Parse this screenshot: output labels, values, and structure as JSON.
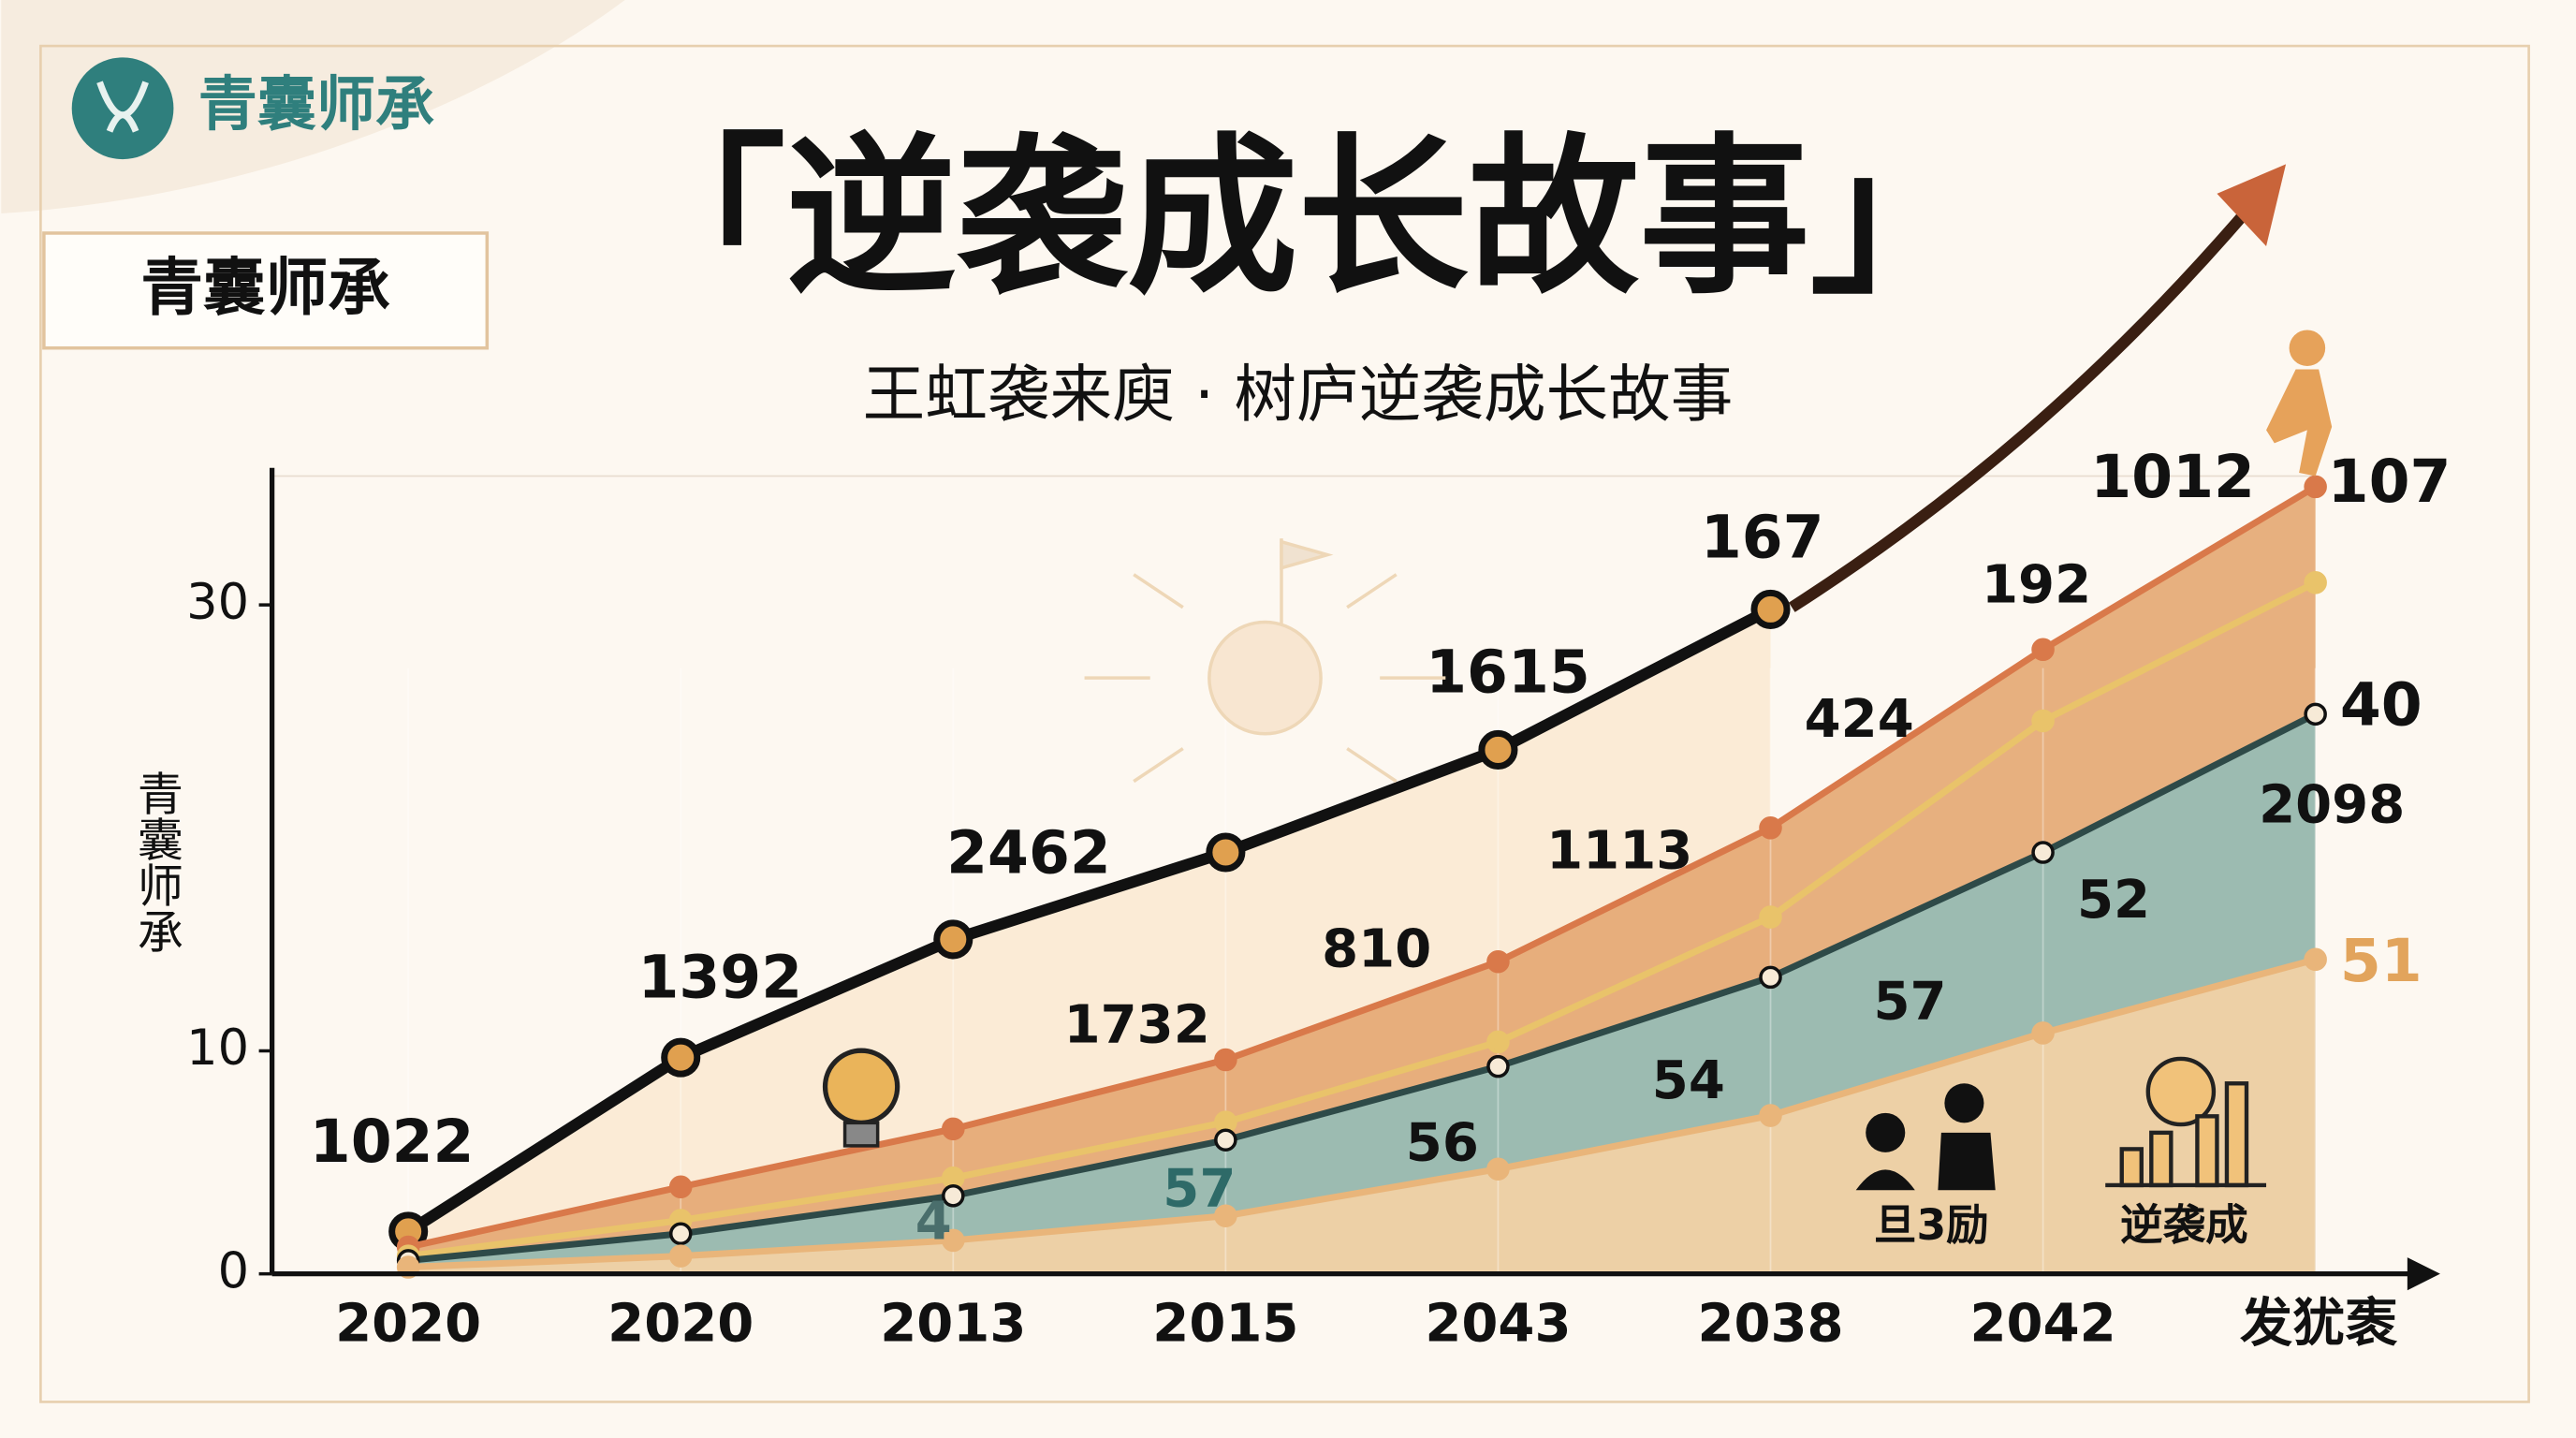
{
  "chart_data": {
    "type": "area",
    "brand": "青囊师承",
    "badge": "青囊师承",
    "title": "「逆袭成长故事」",
    "subtitle": "王虹袭来庾 · 树庐逆袭成长故事",
    "y_label": "青囊师承",
    "categories": [
      "2020",
      "2020",
      "2013",
      "2015",
      "2043",
      "2038",
      "2042",
      "发犹袠"
    ],
    "series": [
      {
        "color": "#111111",
        "fill": "#fbe9d3",
        "values": [
          1.9,
          9.7,
          15,
          18.9,
          23.5,
          29.8,
          null,
          null
        ]
      },
      {
        "color": "#d9794a",
        "fill": "#e4a772",
        "values": [
          1.2,
          3.9,
          6.5,
          9.6,
          14,
          20,
          28,
          35.3
        ]
      },
      {
        "color": "#e9c36a",
        "values": [
          0.8,
          2.4,
          4.3,
          6.8,
          10.4,
          16,
          24.8,
          31
        ]
      },
      {
        "color": "#2e4a48",
        "fill": "#93bcb7",
        "values": [
          0.6,
          1.8,
          3.5,
          6,
          9.3,
          13.3,
          18.9,
          25.1
        ]
      },
      {
        "color": "#e9b57a",
        "fill": "#f6d3a5",
        "values": [
          0.3,
          0.8,
          1.5,
          2.6,
          4.7,
          7.1,
          10.8,
          14.1
        ]
      }
    ],
    "ylim": [
      0,
      36
    ],
    "yticks": [
      10,
      30,
      0
    ],
    "annotations": [
      "1022",
      "1392",
      "2462",
      "1615",
      "167",
      "1012",
      "107",
      "192",
      "424",
      "1113",
      "810",
      "1732",
      "40",
      "2098",
      "52",
      "57",
      "54",
      "56",
      "57",
      "4",
      "51"
    ],
    "icon_captions": [
      "旦3励",
      "逆袭成"
    ]
  }
}
